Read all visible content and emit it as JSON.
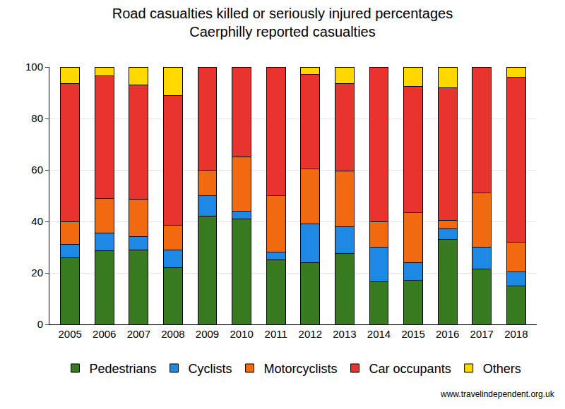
{
  "chart_data": {
    "type": "bar",
    "title": "Road casualties killed or seriously injured percentages",
    "subtitle": "Caerphilly reported casualties",
    "categories": [
      "2005",
      "2006",
      "2007",
      "2008",
      "2009",
      "2010",
      "2011",
      "2012",
      "2013",
      "2014",
      "2015",
      "2016",
      "2017",
      "2018"
    ],
    "series": [
      {
        "name": "Pedestrians",
        "color": "#377a20",
        "values": [
          26,
          28.5,
          29,
          22,
          42,
          41,
          25,
          24,
          27.5,
          16.5,
          17,
          33,
          21.5,
          15
        ]
      },
      {
        "name": "Cyclists",
        "color": "#1e88e5",
        "values": [
          5,
          7,
          5,
          7,
          8,
          3,
          3,
          15,
          10.5,
          13.5,
          7,
          4,
          8.5,
          5.5
        ]
      },
      {
        "name": "Motorcyclists",
        "color": "#f26a10",
        "values": [
          9,
          13.5,
          14.5,
          9.5,
          10,
          21,
          22,
          21.5,
          21.5,
          10,
          19.5,
          3.5,
          21,
          11.5
        ]
      },
      {
        "name": "Car occupants",
        "color": "#e8332f",
        "values": [
          53.5,
          47.5,
          44.5,
          50.5,
          40,
          35,
          50,
          36.5,
          34,
          60,
          49,
          51.5,
          49,
          64
        ]
      },
      {
        "name": "Others",
        "color": "#ffd800",
        "values": [
          6.5,
          3.5,
          7,
          11,
          0,
          0,
          0,
          3,
          6.5,
          0,
          7.5,
          8,
          0,
          4
        ]
      }
    ],
    "ylim": [
      0,
      100
    ],
    "yticks": [
      0,
      20,
      40,
      60,
      80,
      100
    ],
    "grid": true,
    "stacked": true,
    "legend": "bottom",
    "annotations": [
      {
        "text": "www.travelindependent.org.uk"
      }
    ]
  }
}
